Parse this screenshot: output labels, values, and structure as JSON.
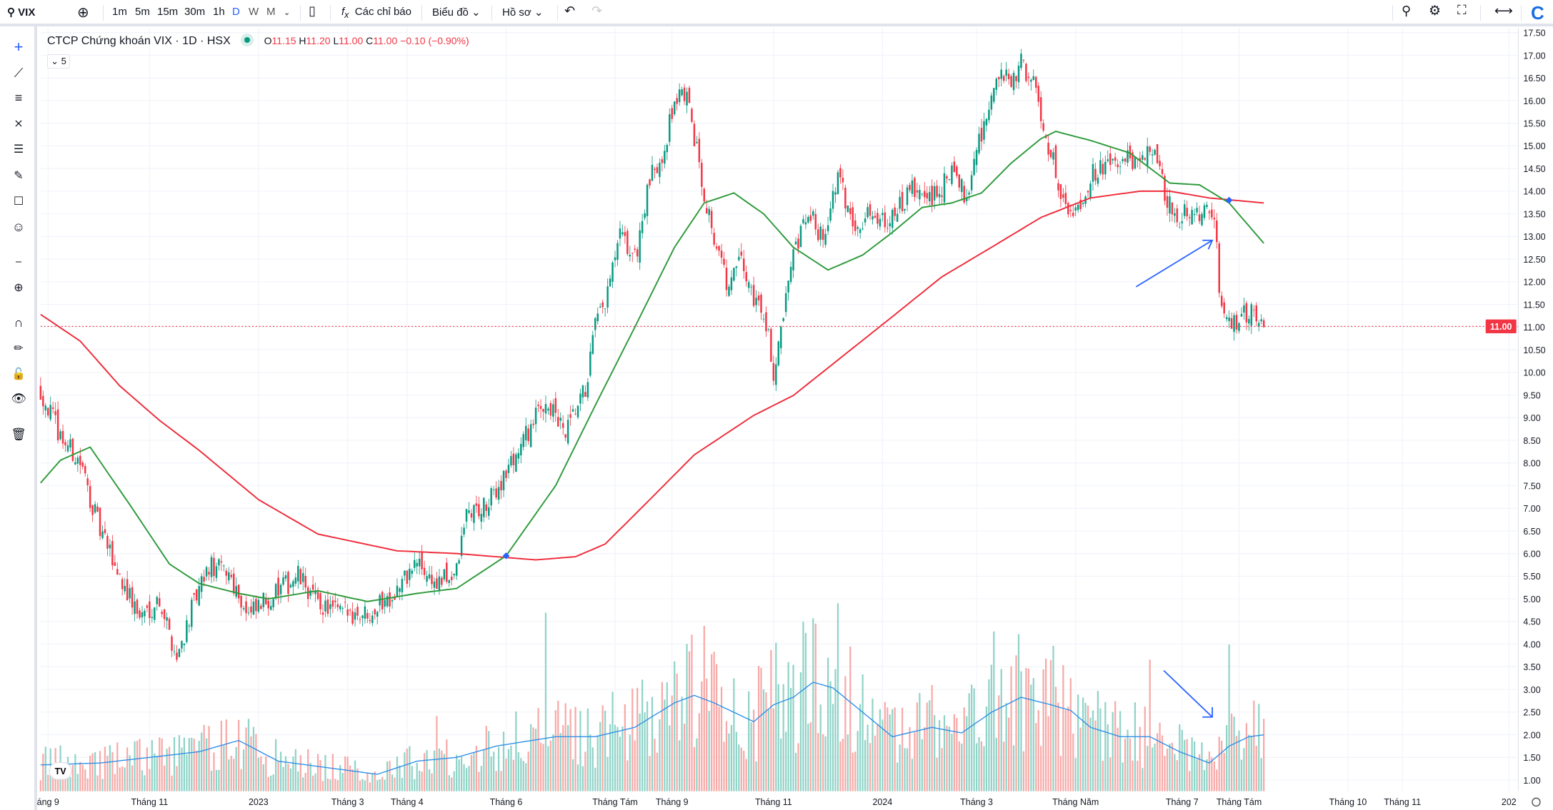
{
  "toolbar": {
    "symbol": "VIX",
    "intervals": [
      "1m",
      "5m",
      "15m",
      "30m",
      "1h",
      "D",
      "W",
      "M"
    ],
    "active_interval": "D",
    "indicators_label": "Các chỉ báo",
    "chart_label": "Biểu đồ",
    "profile_label": "Hồ sơ"
  },
  "legend": {
    "title": "CTCP Chứng khoán VIX · 1D · HSX",
    "o_label": "O",
    "o": "11.15",
    "h_label": "H",
    "h": "11.20",
    "l_label": "L",
    "l": "11.00",
    "c_label": "C",
    "c": "11.00",
    "change": "−0.10 (−0.90%)",
    "collapse_count": "5"
  },
  "colors": {
    "up": "#089981",
    "down": "#f23645",
    "ma_short": "#2e9a3b",
    "ma_long": "#ef2b3a",
    "vol_ma": "#2f8fe8",
    "annotation": "#2962ff"
  },
  "chart_data": {
    "type": "candlestick",
    "symbol": "VIX",
    "interval": "1D",
    "n_bars": 495,
    "ylim": [
      1.0,
      17.5
    ],
    "y_ticks": [
      "17.50",
      "17.00",
      "16.50",
      "16.00",
      "15.50",
      "15.00",
      "14.50",
      "14.00",
      "13.50",
      "13.00",
      "12.50",
      "12.00",
      "11.50",
      "11.00",
      "10.50",
      "10.00",
      "9.50",
      "9.00",
      "8.50",
      "8.00",
      "7.50",
      "7.00",
      "6.50",
      "6.00",
      "5.50",
      "5.00",
      "4.50",
      "4.00",
      "3.50",
      "3.00",
      "2.50",
      "2.00",
      "1.50",
      "1.00"
    ],
    "last_price": "11.00",
    "x_ticks": [
      {
        "t": 3,
        "label": "áng 9"
      },
      {
        "t": 44,
        "label": "Tháng 11"
      },
      {
        "t": 88,
        "label": "2023"
      },
      {
        "t": 124,
        "label": "Tháng 3"
      },
      {
        "t": 148,
        "label": "Tháng 4"
      },
      {
        "t": 188,
        "label": "Tháng 6"
      },
      {
        "t": 232,
        "label": "Tháng Tám"
      },
      {
        "t": 255,
        "label": "Tháng 9"
      },
      {
        "t": 296,
        "label": "Tháng 11"
      },
      {
        "t": 340,
        "label": "2024"
      },
      {
        "t": 378,
        "label": "Tháng 3"
      },
      {
        "t": 418,
        "label": "Tháng Năm"
      },
      {
        "t": 461,
        "label": "Tháng 7"
      },
      {
        "t": 484,
        "label": "Tháng Tám"
      },
      {
        "t": 528,
        "label": "Tháng 10"
      },
      {
        "t": 550,
        "label": "Tháng 11"
      },
      {
        "t": 593,
        "label": "202"
      }
    ],
    "close_keypoints": [
      [
        0,
        9.6
      ],
      [
        8,
        8.6
      ],
      [
        16,
        8.0
      ],
      [
        24,
        6.5
      ],
      [
        32,
        5.5
      ],
      [
        40,
        4.6
      ],
      [
        48,
        5.0
      ],
      [
        55,
        3.7
      ],
      [
        60,
        4.6
      ],
      [
        68,
        5.7
      ],
      [
        76,
        5.6
      ],
      [
        84,
        4.6
      ],
      [
        92,
        5.0
      ],
      [
        104,
        5.5
      ],
      [
        112,
        4.9
      ],
      [
        120,
        4.7
      ],
      [
        132,
        4.7
      ],
      [
        144,
        5.2
      ],
      [
        152,
        5.8
      ],
      [
        160,
        5.3
      ],
      [
        168,
        5.6
      ],
      [
        172,
        6.9
      ],
      [
        180,
        7.0
      ],
      [
        188,
        7.8
      ],
      [
        196,
        8.6
      ],
      [
        204,
        9.4
      ],
      [
        212,
        8.6
      ],
      [
        220,
        9.6
      ],
      [
        224,
        11.0
      ],
      [
        228,
        11.5
      ],
      [
        234,
        13.0
      ],
      [
        240,
        12.5
      ],
      [
        246,
        14.2
      ],
      [
        252,
        15.0
      ],
      [
        256,
        16.0
      ],
      [
        260,
        16.2
      ],
      [
        264,
        15.2
      ],
      [
        268,
        14.0
      ],
      [
        272,
        13.0
      ],
      [
        278,
        11.8
      ],
      [
        282,
        12.5
      ],
      [
        288,
        11.7
      ],
      [
        294,
        11.0
      ],
      [
        296,
        9.8
      ],
      [
        300,
        11.2
      ],
      [
        304,
        12.5
      ],
      [
        310,
        13.5
      ],
      [
        316,
        13.0
      ],
      [
        322,
        14.3
      ],
      [
        328,
        13.3
      ],
      [
        336,
        13.5
      ],
      [
        344,
        13.4
      ],
      [
        352,
        14.0
      ],
      [
        360,
        13.8
      ],
      [
        368,
        14.4
      ],
      [
        374,
        13.9
      ],
      [
        378,
        15.0
      ],
      [
        384,
        16.0
      ],
      [
        388,
        16.7
      ],
      [
        392,
        16.2
      ],
      [
        396,
        16.9
      ],
      [
        402,
        16.2
      ],
      [
        406,
        15.2
      ],
      [
        410,
        14.5
      ],
      [
        414,
        13.5
      ],
      [
        420,
        13.8
      ],
      [
        424,
        14.3
      ],
      [
        428,
        14.6
      ],
      [
        432,
        14.5
      ],
      [
        438,
        14.7
      ],
      [
        444,
        14.5
      ],
      [
        448,
        15.1
      ],
      [
        454,
        14.0
      ],
      [
        458,
        13.3
      ],
      [
        464,
        13.6
      ],
      [
        470,
        13.5
      ],
      [
        474,
        13.4
      ],
      [
        475,
        12.8
      ],
      [
        476,
        11.8
      ],
      [
        480,
        11.0
      ],
      [
        484,
        11.2
      ],
      [
        490,
        11.3
      ],
      [
        494,
        11.0
      ]
    ],
    "ma_short": [
      [
        0,
        7.56
      ],
      [
        8,
        8.06
      ],
      [
        20,
        8.35
      ],
      [
        36,
        7.08
      ],
      [
        52,
        5.77
      ],
      [
        64,
        5.34
      ],
      [
        80,
        5.12
      ],
      [
        92,
        5.0
      ],
      [
        112,
        5.18
      ],
      [
        132,
        4.94
      ],
      [
        152,
        5.12
      ],
      [
        168,
        5.23
      ],
      [
        188,
        5.95
      ],
      [
        208,
        7.5
      ],
      [
        224,
        9.27
      ],
      [
        240,
        11.0
      ],
      [
        256,
        12.76
      ],
      [
        268,
        13.74
      ],
      [
        280,
        13.96
      ],
      [
        292,
        13.5
      ],
      [
        304,
        12.76
      ],
      [
        318,
        12.26
      ],
      [
        332,
        12.59
      ],
      [
        344,
        13.09
      ],
      [
        356,
        13.64
      ],
      [
        368,
        13.74
      ],
      [
        380,
        13.96
      ],
      [
        392,
        14.62
      ],
      [
        404,
        15.16
      ],
      [
        410,
        15.32
      ],
      [
        424,
        15.12
      ],
      [
        440,
        14.84
      ],
      [
        456,
        14.18
      ],
      [
        468,
        14.14
      ],
      [
        480,
        13.74
      ],
      [
        494,
        12.85
      ]
    ],
    "ma_long": [
      [
        0,
        11.28
      ],
      [
        16,
        10.69
      ],
      [
        32,
        9.7
      ],
      [
        48,
        8.94
      ],
      [
        64,
        8.28
      ],
      [
        88,
        7.19
      ],
      [
        112,
        6.43
      ],
      [
        144,
        6.06
      ],
      [
        168,
        6.0
      ],
      [
        200,
        5.86
      ],
      [
        216,
        5.93
      ],
      [
        228,
        6.21
      ],
      [
        244,
        7.08
      ],
      [
        264,
        8.18
      ],
      [
        288,
        9.05
      ],
      [
        304,
        9.49
      ],
      [
        324,
        10.36
      ],
      [
        344,
        11.23
      ],
      [
        364,
        12.11
      ],
      [
        384,
        12.76
      ],
      [
        404,
        13.42
      ],
      [
        424,
        13.85
      ],
      [
        444,
        14.0
      ],
      [
        456,
        14.0
      ],
      [
        472,
        13.85
      ],
      [
        494,
        13.74
      ]
    ],
    "crossovers": [
      [
        188,
        5.95
      ],
      [
        480,
        13.8
      ]
    ],
    "volume_ma": [
      [
        0,
        14
      ],
      [
        24,
        15
      ],
      [
        64,
        21
      ],
      [
        80,
        27
      ],
      [
        96,
        16
      ],
      [
        136,
        9
      ],
      [
        152,
        16
      ],
      [
        168,
        18
      ],
      [
        184,
        24
      ],
      [
        208,
        29
      ],
      [
        224,
        29
      ],
      [
        240,
        34
      ],
      [
        256,
        47
      ],
      [
        264,
        51
      ],
      [
        272,
        47
      ],
      [
        288,
        37
      ],
      [
        296,
        46
      ],
      [
        304,
        50
      ],
      [
        312,
        58
      ],
      [
        320,
        55
      ],
      [
        332,
        42
      ],
      [
        344,
        29
      ],
      [
        360,
        34
      ],
      [
        372,
        31
      ],
      [
        384,
        42
      ],
      [
        396,
        50
      ],
      [
        408,
        46
      ],
      [
        416,
        43
      ],
      [
        424,
        34
      ],
      [
        436,
        29
      ],
      [
        448,
        29
      ],
      [
        460,
        21
      ],
      [
        472,
        15
      ],
      [
        480,
        24
      ],
      [
        488,
        29
      ],
      [
        494,
        30
      ]
    ],
    "volume_spikes": [
      [
        204,
        95
      ],
      [
        268,
        88
      ],
      [
        312,
        92
      ],
      [
        322,
        100
      ],
      [
        385,
        85
      ],
      [
        480,
        78
      ],
      [
        448,
        70
      ],
      [
        160,
        40
      ]
    ]
  }
}
